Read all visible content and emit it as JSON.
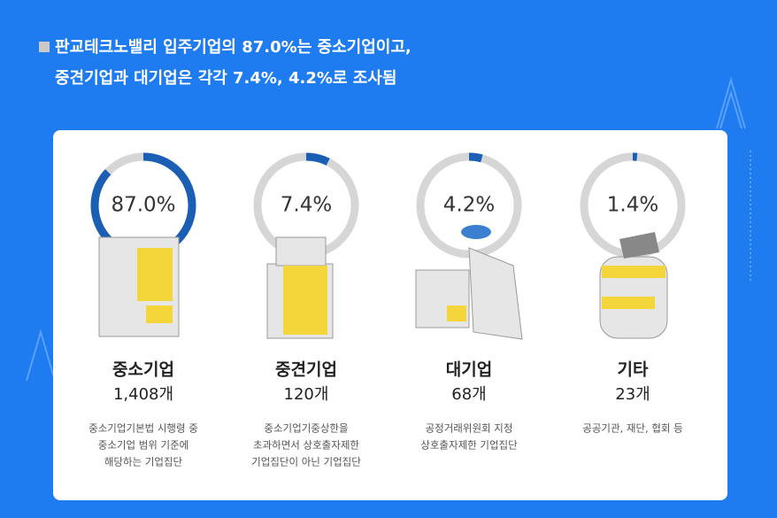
{
  "header": {
    "title_lines": [
      "판교테크노밸리 입주기업의 87.0%는 중소기업이고,",
      "중견기업과 대기업은 각각 7.4%, 4.2%로 조사됨"
    ]
  },
  "chart_data": {
    "type": "gauge",
    "categories": [
      "중소기업",
      "중견기업",
      "대기업",
      "기타"
    ],
    "values": [
      87.0,
      7.4,
      4.2,
      1.4
    ],
    "value_labels": [
      "87.0%",
      "7.4%",
      "4.2%",
      "1.4%"
    ],
    "ylim": [
      0,
      100
    ],
    "color": "#1a5fb4",
    "track_color": "#d6d6d6",
    "count_labels": [
      "1,408개",
      "120개",
      "68개",
      "23개"
    ],
    "descriptions": [
      [
        "중소기업기본법 시행령 중",
        "중소기업 범위 기준에",
        "해당하는 기업집단"
      ],
      [
        "중소기업기중상한을",
        "초과하면서 상호출자제한",
        "기업집단이 아닌 기업집단"
      ],
      [
        "공정거래위원회 지정",
        "상호출자제한 기업집단"
      ],
      [
        "공공기관, 재단, 협회 등"
      ]
    ]
  }
}
